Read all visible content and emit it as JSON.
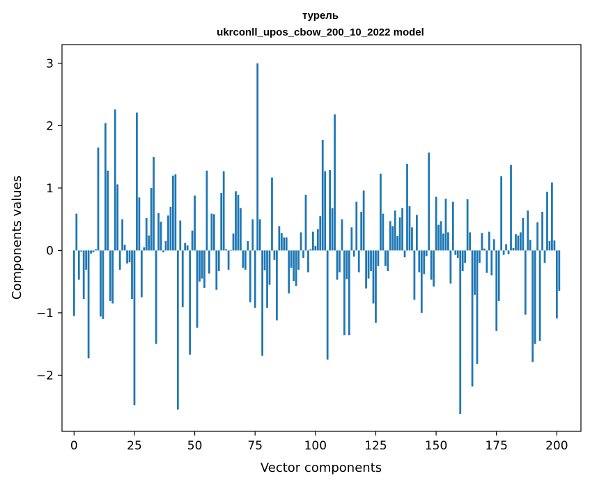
{
  "chart_data": {
    "type": "bar",
    "title": "турель",
    "subtitle": "ukrconll_upos_cbow_200_10_2022 model",
    "xlabel": "Vector components",
    "ylabel": "Components values",
    "xlim": [
      -5,
      210
    ],
    "ylim": [
      -2.9,
      3.3
    ],
    "x_ticks": [
      0,
      25,
      50,
      75,
      100,
      125,
      150,
      175,
      200
    ],
    "y_ticks": [
      -2,
      -1,
      0,
      1,
      2,
      3
    ],
    "x_tick_labels": [
      "0",
      "25",
      "50",
      "75",
      "100",
      "125",
      "150",
      "175",
      "200"
    ],
    "y_tick_labels": [
      "−2",
      "−1",
      "0",
      "1",
      "2",
      "3"
    ],
    "bar_color": "#1f77b4",
    "grid": false,
    "values": [
      -1.05,
      0.59,
      -0.47,
      -0.02,
      -0.78,
      -0.31,
      -1.73,
      -0.05,
      -0.03,
      0.02,
      1.65,
      -1.06,
      -1.1,
      2.04,
      1.28,
      -0.81,
      -0.85,
      2.26,
      1.06,
      -0.31,
      0.5,
      0.09,
      -0.21,
      -0.19,
      -0.78,
      -2.48,
      2.21,
      0.85,
      -0.75,
      0.05,
      0.52,
      0.24,
      1.0,
      1.5,
      -1.5,
      0.6,
      0.46,
      -0.03,
      0.15,
      0.56,
      0.7,
      1.2,
      1.22,
      -2.55,
      0.48,
      -0.91,
      0.12,
      0.08,
      -1.67,
      0.32,
      0.88,
      -1.24,
      -0.5,
      -0.45,
      -0.6,
      1.28,
      -0.37,
      0.59,
      0.58,
      -0.63,
      -0.33,
      0.92,
      1.27,
      0.02,
      -0.31,
      0.0,
      0.27,
      0.95,
      0.89,
      0.68,
      -0.28,
      -0.31,
      0.15,
      -0.83,
      0.5,
      -0.92,
      3.0,
      0.5,
      -1.69,
      -0.32,
      -0.92,
      -0.55,
      1.17,
      -0.15,
      -1.12,
      0.39,
      0.28,
      0.21,
      0.21,
      -0.69,
      -0.28,
      -0.49,
      -0.57,
      -0.31,
      0.29,
      -0.12,
      0.89,
      -0.35,
      0.02,
      0.3,
      0.07,
      0.34,
      0.55,
      1.77,
      1.27,
      -1.75,
      1.29,
      0.68,
      2.18,
      -0.47,
      -0.35,
      0.5,
      -1.36,
      -0.46,
      -1.36,
      0.37,
      -0.1,
      0.78,
      -0.35,
      0.62,
      0.96,
      -0.61,
      -0.45,
      -0.33,
      -0.85,
      -1.16,
      -0.25,
      1.23,
      0.59,
      -0.25,
      -0.33,
      0.47,
      0.39,
      0.64,
      0.23,
      0.53,
      0.68,
      -0.11,
      1.39,
      0.71,
      0.37,
      -0.79,
      0.57,
      -0.35,
      -1.0,
      -0.38,
      -0.09,
      1.57,
      -0.47,
      -0.58,
      0.86,
      0.41,
      0.47,
      0.27,
      0.83,
      0.29,
      -0.53,
      0.78,
      -0.07,
      -0.12,
      -2.62,
      -0.33,
      -0.2,
      0.82,
      0.29,
      -2.18,
      -0.71,
      -1.82,
      -0.2,
      0.28,
      0.03,
      -0.36,
      0.3,
      -0.4,
      0.18,
      -1.29,
      -0.81,
      1.19,
      -0.07,
      0.1,
      -0.06,
      1.37,
      0.04,
      0.26,
      0.24,
      0.29,
      0.52,
      -1.03,
      0.64,
      0.17,
      -1.79,
      -1.5,
      0.45,
      -1.45,
      0.62,
      -0.2,
      0.94,
      0.15,
      1.09,
      0.16,
      -1.09,
      -0.65
    ]
  }
}
